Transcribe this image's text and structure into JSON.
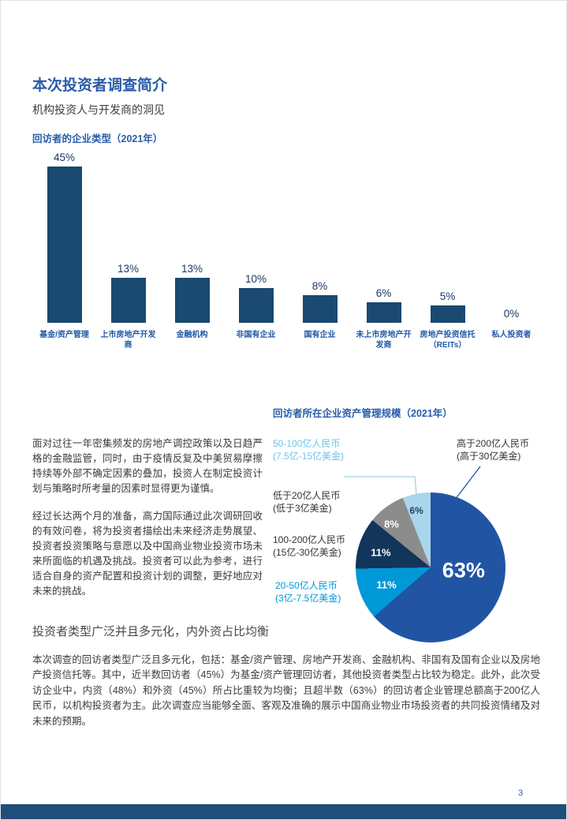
{
  "page": {
    "title": "本次投资者调查简介",
    "subtitle": "机构投资人与开发商的洞见",
    "page_number": "3"
  },
  "colors": {
    "bar": "#1a4971",
    "accent_blue": "#2a5ca8",
    "pie_dark_blue": "#2155a4",
    "pie_cyan": "#0099d8",
    "pie_navy": "#12355b",
    "pie_gray": "#8c8c8c",
    "pie_light_blue": "#a9d6ea",
    "label_light_blue": "#6fc3e6",
    "footer_navy": "#1f4e79"
  },
  "bar_chart": {
    "title": "回访者的企业类型（2021年）",
    "categories": [
      "基金/资产管理",
      "上市房地产开发商",
      "金融机构",
      "非国有企业",
      "国有企业",
      "未上市房地产开发商",
      "房地产投资信托（REITs）",
      "私人投资者"
    ],
    "values": [
      45,
      13,
      13,
      10,
      8,
      6,
      5,
      0
    ],
    "value_labels": [
      "45%",
      "13%",
      "13%",
      "10%",
      "8%",
      "6%",
      "5%",
      "0%"
    ]
  },
  "pie_chart": {
    "title": "回访者所在企业资产管理规模（2021年）",
    "slices": [
      {
        "label": "高于200亿人民币",
        "sublabel": "(高于30亿美金)",
        "pct": 63,
        "pct_label": "63%",
        "color": "#2155a4"
      },
      {
        "label": "20-50亿人民币",
        "sublabel": "(3亿-7.5亿美金)",
        "pct": 11,
        "pct_label": "11%",
        "color": "#0099d8"
      },
      {
        "label": "100-200亿人民币",
        "sublabel": "(15亿-30亿美金)",
        "pct": 11,
        "pct_label": "11%",
        "color": "#12355b"
      },
      {
        "label": "低于20亿人民币",
        "sublabel": "(低于3亿美金)",
        "pct": 8,
        "pct_label": "8%",
        "color": "#8c8c8c"
      },
      {
        "label": "50-100亿人民币",
        "sublabel": "(7.5亿-15亿美金)",
        "pct": 6,
        "pct_label": "6%",
        "color": "#a9d6ea"
      }
    ]
  },
  "paragraphs": {
    "p1": "面对过往一年密集频发的房地产调控政策以及日趋严格的金融监管，同时，由于疫情反复及中美贸易摩擦持续等外部不确定因素的叠加，投资人在制定投资计划与策略时所考量的因素时显得更为谨慎。",
    "p2": "经过长达两个月的准备，高力国际通过此次调研回收的有效问卷，将为投资者描绘出未来经济走势展望、投资者投资策略与意愿以及中国商业物业投资市场未来所面临的机遇及挑战。投资者可以此为参考，进行适合自身的资产配置和投资计划的调整，更好地应对未来的挑战。"
  },
  "section": {
    "heading": "投资者类型广泛并且多元化，内外资占比均衡",
    "body": "本次调查的回访者类型广泛且多元化，包括：基金/资产管理、房地产开发商、金融机构、非国有及国有企业以及房地产投资信托等。其中，近半数回访者（45%）为基金/资产管理回访者，其他投资者类型占比较为稳定。此外，此次受访企业中，内资（48%）和外资（45%）所占比重较为均衡；且超半数（63%）的回访者企业管理总额高于200亿人民币，以机构投资者为主。此次调查应当能够全面、客观及准确的展示中国商业物业市场投资者的共同投资情绪及对未来的预期。"
  },
  "chart_data": [
    {
      "type": "bar",
      "title": "回访者的企业类型（2021年）",
      "categories": [
        "基金/资产管理",
        "上市房地产开发商",
        "金融机构",
        "非国有企业",
        "国有企业",
        "未上市房地产开发商",
        "房地产投资信托（REITs）",
        "私人投资者"
      ],
      "values": [
        45,
        13,
        13,
        10,
        8,
        6,
        5,
        0
      ],
      "unit": "%",
      "ylim": [
        0,
        45
      ],
      "grid": false,
      "legend": "none"
    },
    {
      "type": "pie",
      "title": "回访者所在企业资产管理规模（2021年）",
      "labels": [
        "高于200亿人民币(高于30亿美金)",
        "20-50亿人民币(3亿-7.5亿美金)",
        "100-200亿人民币(15亿-30亿美金)",
        "低于20亿人民币(低于3亿美金)",
        "50-100亿人民币(7.5亿-15亿美金)"
      ],
      "values": [
        63,
        11,
        11,
        8,
        6
      ],
      "unit": "%",
      "legend": "outside-labels"
    }
  ]
}
